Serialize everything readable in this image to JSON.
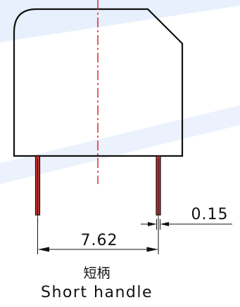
{
  "drawing": {
    "dimension_pitch": "7.62",
    "dimension_pin_width": "0.15",
    "caption_cn": "短柄",
    "caption_en": "Short handle"
  },
  "colors": {
    "outline": "#111111",
    "centerline": "#e0141e",
    "pin_fill": "#c23030",
    "watermark": "#dde9fb"
  }
}
